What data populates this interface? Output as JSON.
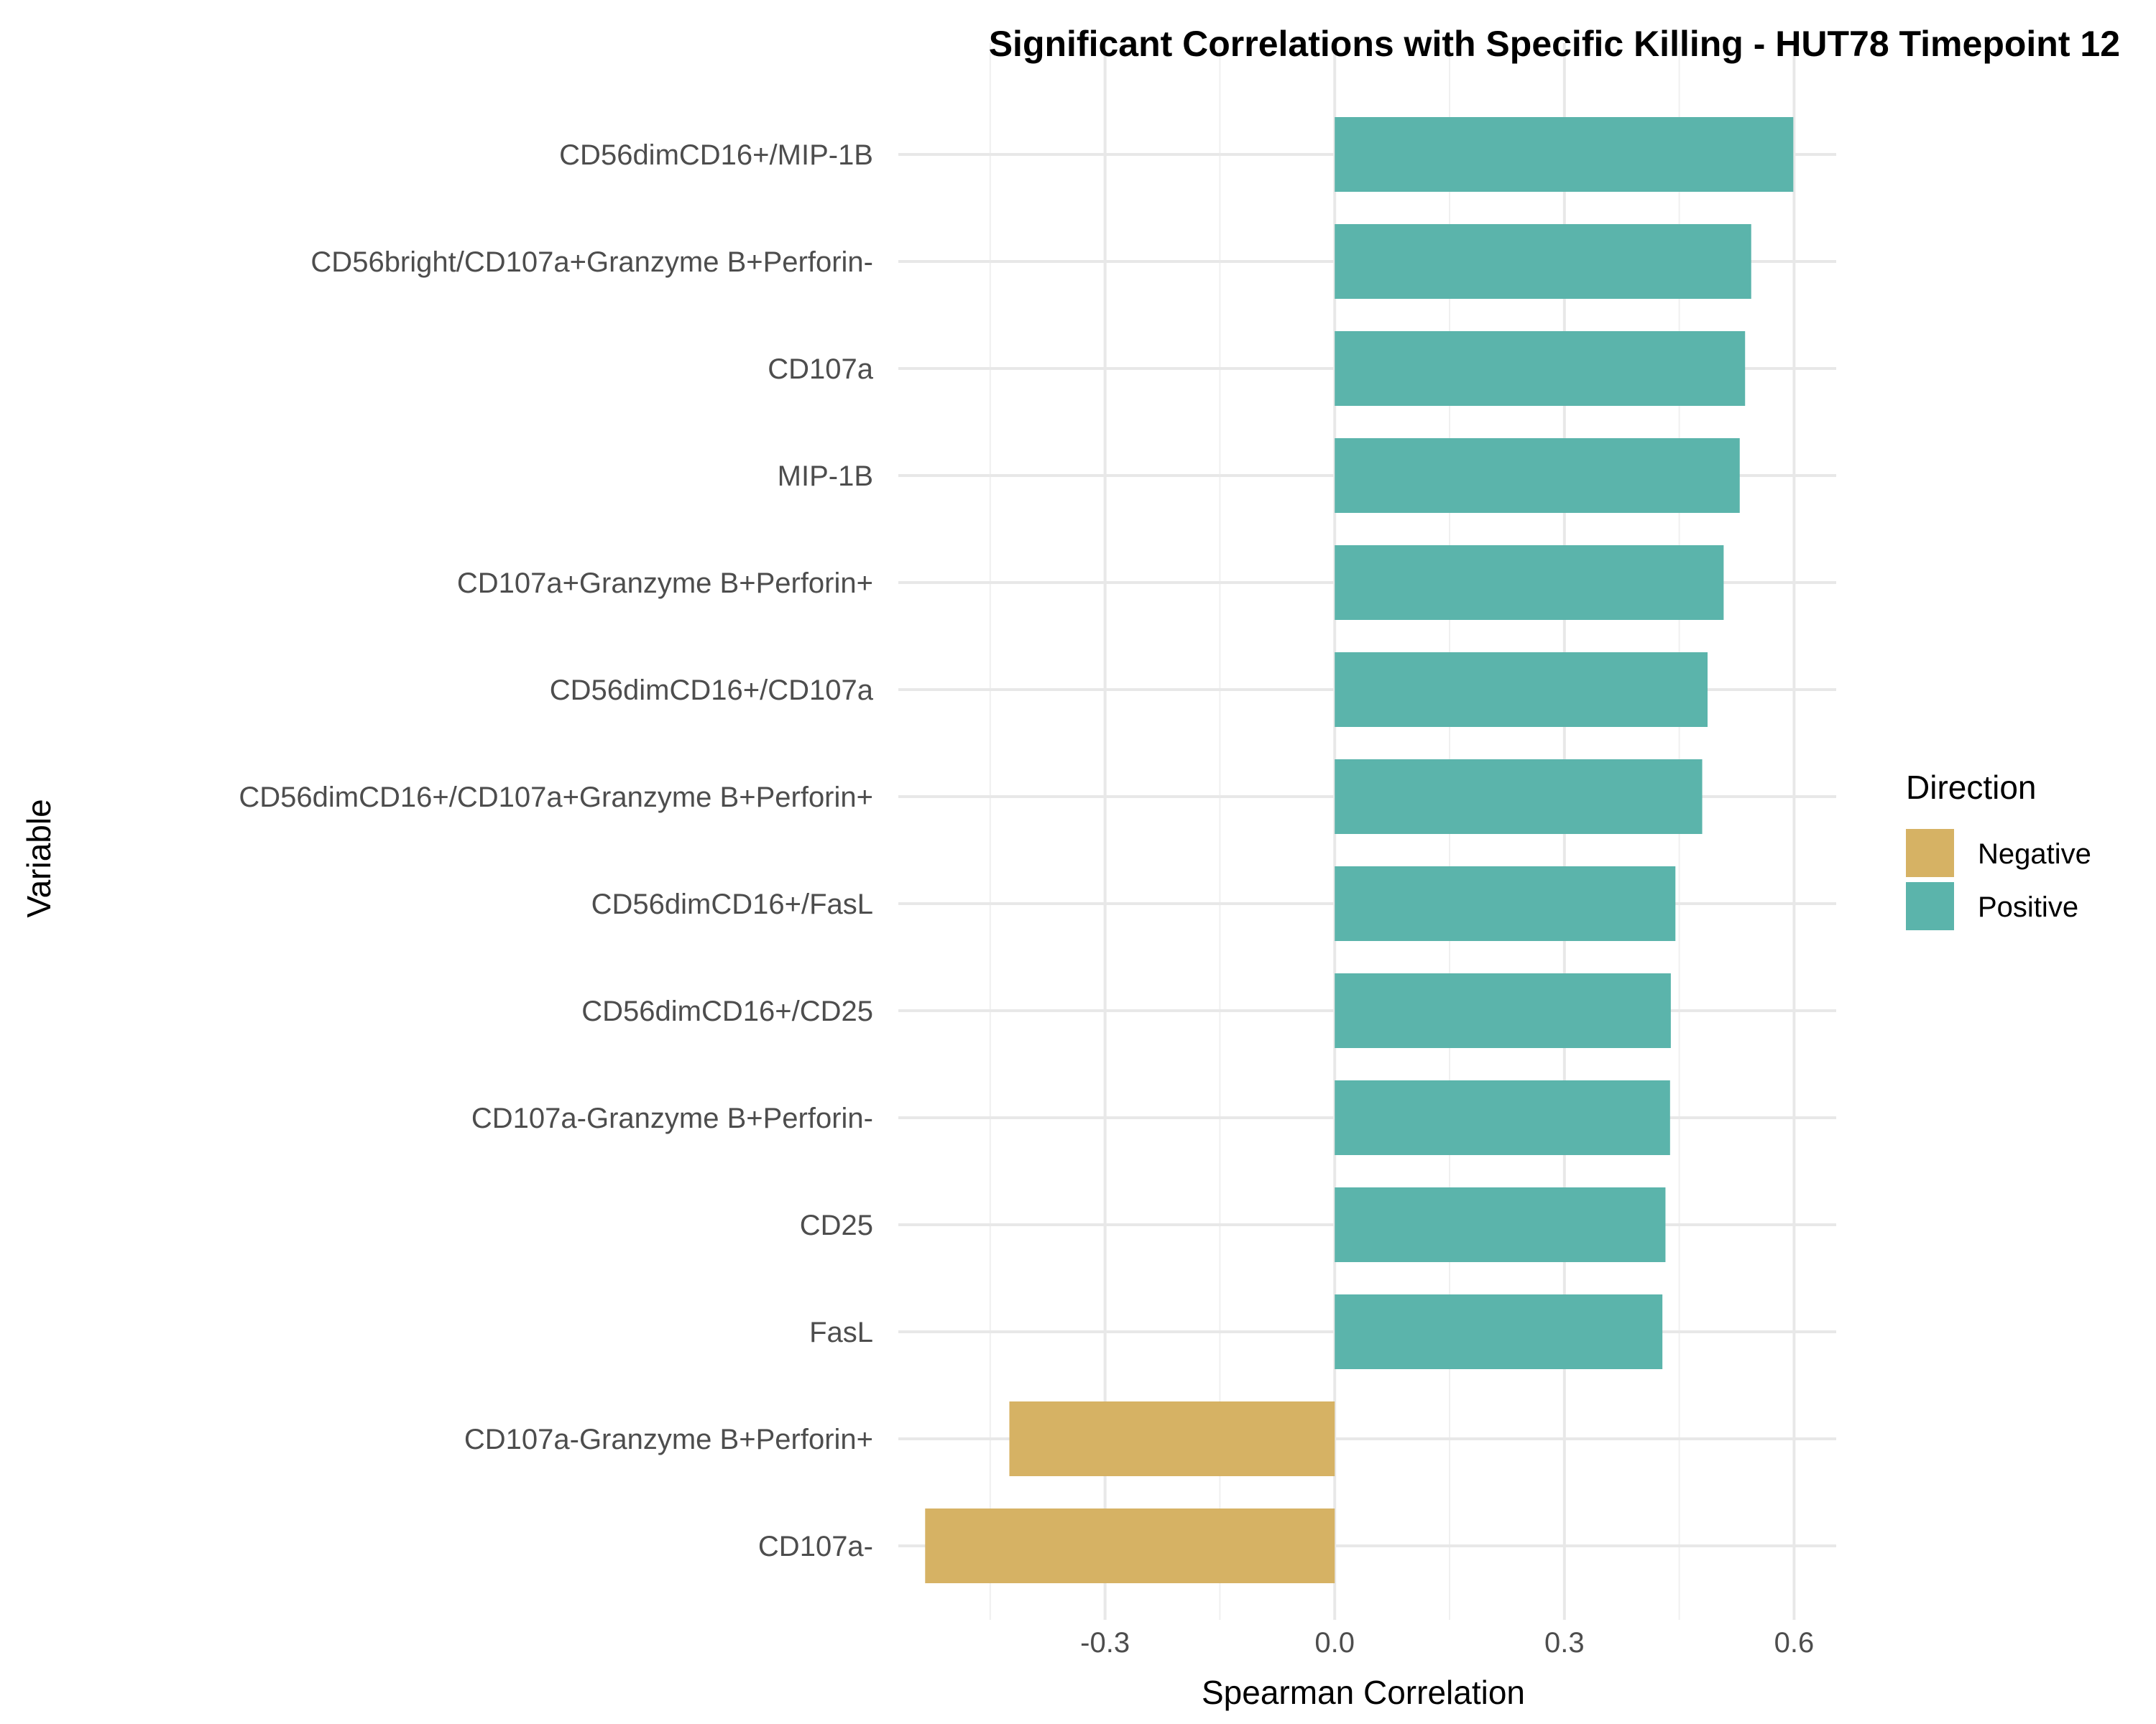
{
  "chart_data": {
    "type": "bar",
    "orientation": "horizontal",
    "title": "Significant Correlations with Specific Killing - HUT78 Timepoint 12",
    "xlabel": "Spearman Correlation",
    "ylabel": "Variable",
    "xlim": [
      -0.57,
      0.655
    ],
    "xticks": [
      -0.3,
      0.0,
      0.3,
      0.6
    ],
    "xtick_labels": [
      "-0.3",
      "0.0",
      "0.3",
      "0.6"
    ],
    "grid": true,
    "legend": {
      "title": "Direction",
      "position": "right",
      "entries": [
        {
          "label": "Negative",
          "color": "#D6B264"
        },
        {
          "label": "Positive",
          "color": "#5BB4AB"
        }
      ]
    },
    "categories": [
      "CD56dimCD16+/MIP-1B",
      "CD56bright/CD107a+Granzyme B+Perforin-",
      "CD107a",
      "MIP-1B",
      "CD107a+Granzyme B+Perforin+",
      "CD56dimCD16+/CD107a",
      "CD56dimCD16+/CD107a+Granzyme B+Perforin+",
      "CD56dimCD16+/FasL",
      "CD56dimCD16+/CD25",
      "CD107a-Granzyme B+Perforin-",
      "CD25",
      "FasL",
      "CD107a-Granzyme B+Perforin+",
      "CD107a-"
    ],
    "values": [
      0.599,
      0.544,
      0.536,
      0.529,
      0.508,
      0.487,
      0.48,
      0.445,
      0.439,
      0.438,
      0.432,
      0.428,
      -0.425,
      -0.535
    ],
    "directions": [
      "Positive",
      "Positive",
      "Positive",
      "Positive",
      "Positive",
      "Positive",
      "Positive",
      "Positive",
      "Positive",
      "Positive",
      "Positive",
      "Positive",
      "Negative",
      "Negative"
    ]
  }
}
